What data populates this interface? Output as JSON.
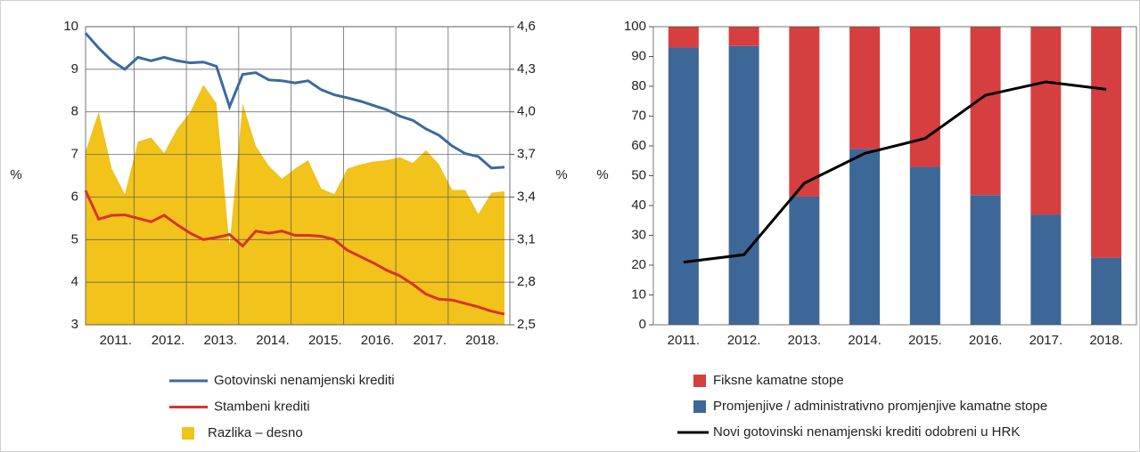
{
  "chart_data": [
    {
      "type": "line",
      "y_label": "%",
      "y2_label": "%",
      "categories": [
        "2011.",
        null,
        null,
        null,
        "2012.",
        null,
        null,
        null,
        "2013.",
        null,
        null,
        null,
        "2014.",
        null,
        null,
        null,
        "2015.",
        null,
        null,
        null,
        "2016.",
        null,
        null,
        null,
        "2017.",
        null,
        null,
        null,
        "2018.",
        null,
        null,
        null,
        null
      ],
      "ylim": [
        3,
        10
      ],
      "yticks": [
        3,
        4,
        5,
        6,
        7,
        8,
        9,
        10
      ],
      "y2lim": [
        2.5,
        4.6
      ],
      "y2ticks": [
        {
          "value": 2.5,
          "label": "2,5"
        },
        {
          "value": 2.8,
          "label": "2,8"
        },
        {
          "value": 3.1,
          "label": "3,1"
        },
        {
          "value": 3.4,
          "label": "3,4"
        },
        {
          "value": 3.7,
          "label": "3,7"
        },
        {
          "value": 4.0,
          "label": "4,0"
        },
        {
          "value": 4.3,
          "label": "4,3"
        },
        {
          "value": 4.6,
          "label": "4,6"
        }
      ],
      "grid": true,
      "series": [
        {
          "name": "Gotovinski nenamjenski krediti",
          "type": "line",
          "color": "#3b6aa0",
          "values": [
            9.85,
            9.5,
            9.2,
            9.0,
            9.28,
            9.2,
            9.28,
            9.2,
            9.15,
            9.17,
            9.07,
            8.12,
            8.88,
            8.92,
            8.75,
            8.73,
            8.68,
            8.73,
            8.52,
            8.4,
            8.33,
            8.25,
            8.15,
            8.05,
            7.9,
            7.8,
            7.6,
            7.45,
            7.2,
            7.02,
            6.95,
            6.68,
            6.7
          ]
        },
        {
          "name": "Stambeni krediti",
          "type": "line",
          "color": "#d9322e",
          "values": [
            6.15,
            5.48,
            5.57,
            5.58,
            5.5,
            5.42,
            5.57,
            5.35,
            5.15,
            5.0,
            5.05,
            5.12,
            4.85,
            5.2,
            5.15,
            5.2,
            5.1,
            5.1,
            5.08,
            5.0,
            4.75,
            4.6,
            4.45,
            4.28,
            4.15,
            3.95,
            3.72,
            3.6,
            3.58,
            3.5,
            3.42,
            3.32,
            3.25
          ]
        },
        {
          "name": "Razlika – desno",
          "type": "area",
          "axis": "y2",
          "color": "#f1c31b",
          "values": [
            3.72,
            4.0,
            3.6,
            3.42,
            3.79,
            3.82,
            3.71,
            3.88,
            4.0,
            4.19,
            4.06,
            3.06,
            4.06,
            3.76,
            3.62,
            3.53,
            3.6,
            3.66,
            3.46,
            3.42,
            3.6,
            3.63,
            3.65,
            3.66,
            3.68,
            3.64,
            3.73,
            3.63,
            3.45,
            3.45,
            3.28,
            3.43,
            3.44
          ]
        }
      ]
    },
    {
      "type": "bar",
      "stacked": true,
      "y_label": "%",
      "categories": [
        "2011.",
        "2012.",
        "2013.",
        "2014.",
        "2015.",
        "2016.",
        "2017.",
        "2018."
      ],
      "ylim": [
        0,
        100
      ],
      "yticks": [
        0,
        10,
        20,
        30,
        40,
        50,
        60,
        70,
        80,
        90,
        100
      ],
      "series": [
        {
          "name": "Fiksne kamatne stope",
          "type": "bar",
          "color": "#d63f3f",
          "values": [
            7,
            6.5,
            57,
            41,
            47,
            56.5,
            63,
            77.5
          ]
        },
        {
          "name": "Promjenjive / administrativno promjenjive kamatne stope",
          "type": "bar",
          "color": "#3d6796",
          "values": [
            93,
            93.5,
            43,
            59,
            53,
            43.5,
            37,
            22.5
          ]
        },
        {
          "name": "Novi gotovinski nenamjenski krediti odobreni u HRK",
          "type": "line",
          "color": "#000000",
          "values": [
            21,
            23.5,
            47.5,
            57.5,
            62.5,
            77,
            81.5,
            79
          ]
        }
      ]
    }
  ]
}
